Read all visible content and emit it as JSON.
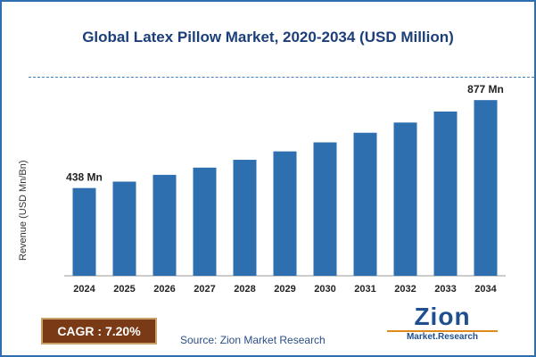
{
  "chart_data": {
    "type": "bar",
    "title": "Global Latex Pillow Market, 2020-2034 (USD Million)",
    "xlabel": "",
    "ylabel": "Revenue (USD Mn/Bn)",
    "categories": [
      "2024",
      "2025",
      "2026",
      "2027",
      "2028",
      "2029",
      "2030",
      "2031",
      "2032",
      "2033",
      "2034"
    ],
    "values": [
      438,
      470,
      504,
      540,
      579,
      621,
      666,
      714,
      765,
      820,
      877
    ],
    "ylim": [
      0,
      900
    ],
    "grid": false,
    "annotations": [
      {
        "index": 0,
        "text": "438 Mn"
      },
      {
        "index": 10,
        "text": "877 Mn"
      }
    ],
    "bar_color": "#2e6fb0"
  },
  "cagr_label": "CAGR : 7.20%",
  "source": "Source: Zion Market Research",
  "logo": {
    "main": "Zion",
    "sub": "Market.Research"
  }
}
